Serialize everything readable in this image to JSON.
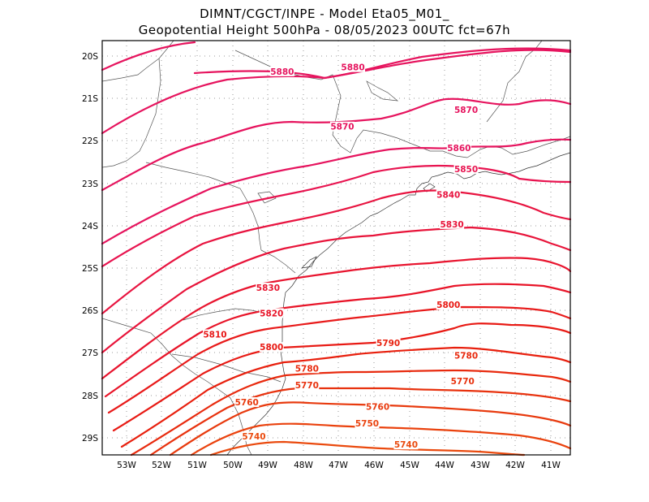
{
  "title": {
    "line1": "DIMNT/CGCT/INPE -  Model Eta05_M01_",
    "line2": "Geopotential Height 500hPa -  08/05/2023 00UTC fct=67h"
  },
  "axes": {
    "lat_labels": [
      "20S",
      "21S",
      "22S",
      "23S",
      "24S",
      "25S",
      "26S",
      "27S",
      "28S",
      "29S"
    ],
    "lon_labels": [
      "53W",
      "52W",
      "51W",
      "50W",
      "49W",
      "48W",
      "47W",
      "46W",
      "45W",
      "44W",
      "43W",
      "42W",
      "41W"
    ]
  },
  "map_data": {
    "type": "contour_map",
    "variable": "Geopotential Height 500hPa",
    "contour_levels": [
      5740,
      5750,
      5760,
      5770,
      5780,
      5790,
      5800,
      5810,
      5820,
      5830,
      5840,
      5850,
      5860,
      5870,
      5880
    ],
    "labels": [
      {
        "text": "5880",
        "lon": -48.6,
        "lat": -20.4,
        "color": "#e6145e"
      },
      {
        "text": "5880",
        "lon": -46.6,
        "lat": -20.3,
        "color": "#e6145e"
      },
      {
        "text": "5870",
        "lon": -46.9,
        "lat": -21.7,
        "color": "#e6145e"
      },
      {
        "text": "5870",
        "lon": -43.4,
        "lat": -21.3,
        "color": "#e6145e"
      },
      {
        "text": "5860",
        "lon": -43.6,
        "lat": -22.2,
        "color": "#e6145e"
      },
      {
        "text": "5850",
        "lon": -43.4,
        "lat": -22.7,
        "color": "#e81450"
      },
      {
        "text": "5840",
        "lon": -43.9,
        "lat": -23.3,
        "color": "#e81440"
      },
      {
        "text": "5830",
        "lon": -43.8,
        "lat": -24.0,
        "color": "#e8143a"
      },
      {
        "text": "5830",
        "lon": -49.0,
        "lat": -25.5,
        "color": "#e8142e"
      },
      {
        "text": "5820",
        "lon": -48.9,
        "lat": -26.1,
        "color": "#e81428"
      },
      {
        "text": "5810",
        "lon": -50.5,
        "lat": -26.6,
        "color": "#e81a1a"
      },
      {
        "text": "5800",
        "lon": -43.9,
        "lat": -25.9,
        "color": "#e81a14"
      },
      {
        "text": "5800",
        "lon": -48.9,
        "lat": -26.9,
        "color": "#e81a14"
      },
      {
        "text": "5790",
        "lon": -45.6,
        "lat": -26.8,
        "color": "#e8200e"
      },
      {
        "text": "5780",
        "lon": -47.9,
        "lat": -27.4,
        "color": "#e82a0e"
      },
      {
        "text": "5780",
        "lon": -43.4,
        "lat": -27.1,
        "color": "#e82a0e"
      },
      {
        "text": "5770",
        "lon": -47.9,
        "lat": -27.8,
        "color": "#e8320e"
      },
      {
        "text": "5770",
        "lon": -43.5,
        "lat": -27.7,
        "color": "#e8320e"
      },
      {
        "text": "5760",
        "lon": -49.6,
        "lat": -28.2,
        "color": "#e83a0e"
      },
      {
        "text": "5760",
        "lon": -45.9,
        "lat": -28.3,
        "color": "#e83a0e"
      },
      {
        "text": "5750",
        "lon": -46.2,
        "lat": -28.7,
        "color": "#ea420e"
      },
      {
        "text": "5740",
        "lon": -49.4,
        "lat": -29.0,
        "color": "#ea4a0e"
      },
      {
        "text": "5740",
        "lon": -45.1,
        "lat": -29.2,
        "color": "#ea4a0e"
      }
    ]
  },
  "colors": {
    "contour_ramp": [
      "#e6145e",
      "#e6145e",
      "#e81450",
      "#e81440",
      "#e8143a",
      "#e8142e",
      "#e81428",
      "#e81a1a",
      "#e81a14",
      "#e8200e",
      "#e82a0e",
      "#e8320e",
      "#e83a0e",
      "#ea420e",
      "#ea4a0e"
    ]
  }
}
